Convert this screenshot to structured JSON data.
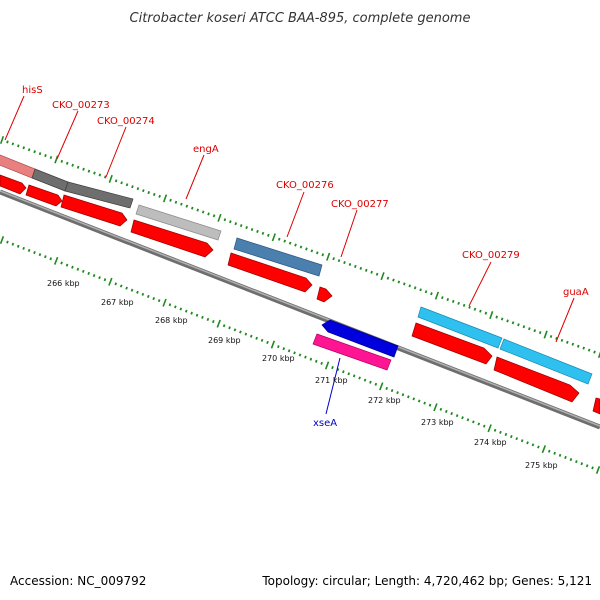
{
  "title": "Citrobacter koseri ATCC BAA-895, complete genome",
  "footer": {
    "accession": "Accession: NC_009792",
    "topology": "Topology: circular; Length: 4,720,462 bp; Genes: 5,121"
  },
  "colors": {
    "backbone": "#7f7f7f",
    "cds": "#ff0000",
    "ticks": "#1f8a1f",
    "label_plus": "#dd0000",
    "label_minus": "#0000cc"
  },
  "genes": [
    {
      "name": "hisS",
      "strand": "+",
      "color": "#e88080"
    },
    {
      "name": "CKO_00273",
      "strand": "+",
      "color": "#6e6e6e"
    },
    {
      "name": "CKO_00274",
      "strand": "+",
      "color": "#6e6e6e"
    },
    {
      "name": "engA",
      "strand": "+",
      "color": "#bdbdbd"
    },
    {
      "name": "CKO_00276",
      "strand": "+",
      "color": "#4a7fae"
    },
    {
      "name": "CKO_00277",
      "strand": "+",
      "color": "#ff0000"
    },
    {
      "name": "xseA",
      "strand": "-",
      "color": "#ff1493"
    },
    {
      "name": "CKO_00279",
      "strand": "+",
      "color": "#2ec0ee"
    },
    {
      "name": "guaA",
      "strand": "+",
      "color": "#2ec0ee"
    }
  ],
  "ticks": [
    "266 kbp",
    "267 kbp",
    "268 kbp",
    "269 kbp",
    "270 kbp",
    "271 kbp",
    "272 kbp",
    "273 kbp",
    "274 kbp",
    "275 kbp"
  ]
}
